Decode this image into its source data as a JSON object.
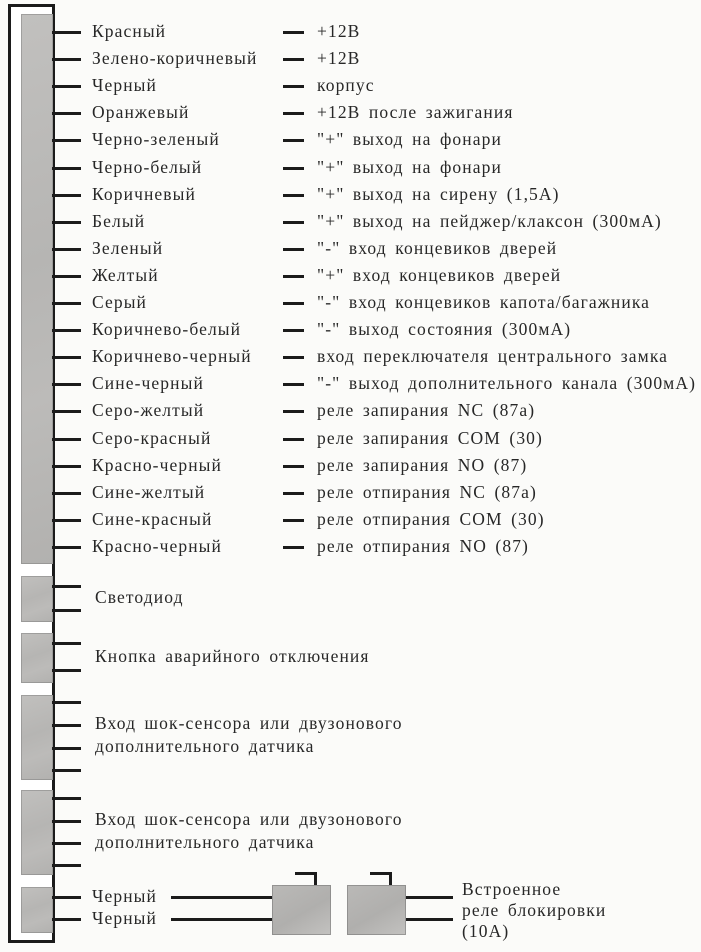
{
  "diagram": {
    "title": "car-alarm-unit-wiring-diagram",
    "language": "ru",
    "colors": {
      "connector_gray": "#b8b7b5",
      "line_black": "#1b1b1b",
      "paper": "#fbfbf9",
      "text": "#272727"
    },
    "main_wires": [
      {
        "color": "Красный",
        "function": "+12В"
      },
      {
        "color": "Зелено-коричневый",
        "function": "+12В"
      },
      {
        "color": "Черный",
        "function": "корпус"
      },
      {
        "color": "Оранжевый",
        "function": "+12В после зажигания"
      },
      {
        "color": "Черно-зеленый",
        "function": "\"+\" выход на фонари"
      },
      {
        "color": "Черно-белый",
        "function": "\"+\" выход на фонари"
      },
      {
        "color": "Коричневый",
        "function": "\"+\" выход на сирену (1,5А)"
      },
      {
        "color": "Белый",
        "function": "\"+\" выход на пейджер/клаксон (300мА)"
      },
      {
        "color": "Зеленый",
        "function": "\"-\" вход концевиков дверей"
      },
      {
        "color": "Желтый",
        "function": "\"+\" вход концевиков дверей"
      },
      {
        "color": "Серый",
        "function": "\"-\" вход концевиков капота/багажника"
      },
      {
        "color": "Коричнево-белый",
        "function": "\"-\" выход состояния (300мА)"
      },
      {
        "color": "Коричнево-черный",
        "function": "вход переключателя центрального замка"
      },
      {
        "color": "Сине-черный",
        "function": "\"-\" выход дополнительного канала (300мА)"
      },
      {
        "color": "Серо-желтый",
        "function": "реле запирания NC (87a)"
      },
      {
        "color": "Серо-красный",
        "function": "реле запирания COM (30)"
      },
      {
        "color": "Красно-черный",
        "function": "реле запирания NO (87)"
      },
      {
        "color": "Сине-желтый",
        "function": "реле отпирания NC (87a)"
      },
      {
        "color": "Сине-красный",
        "function": "реле отпирания COM (30)"
      },
      {
        "color": "Красно-черный",
        "function": "реле отпирания NO (87)"
      }
    ],
    "aux_blocks": [
      {
        "name": "led",
        "wire_count": 2,
        "label_lines": [
          "Светодиод"
        ]
      },
      {
        "name": "valet-button",
        "wire_count": 2,
        "label_lines": [
          "Кнопка аварийного отключения"
        ]
      },
      {
        "name": "shock-sensor-1",
        "wire_count": 4,
        "label_lines": [
          "Вход шок-сенсора или двузонового",
          "дополнительного датчика"
        ]
      },
      {
        "name": "shock-sensor-2",
        "wire_count": 4,
        "label_lines": [
          "Вход шок-сенсора или двузонового",
          "дополнительного датчика"
        ]
      }
    ],
    "relay_section": {
      "wires": [
        "Черный",
        "Черный"
      ],
      "label_lines": [
        "Встроенное",
        "реле блокировки",
        "(10А)"
      ]
    }
  }
}
